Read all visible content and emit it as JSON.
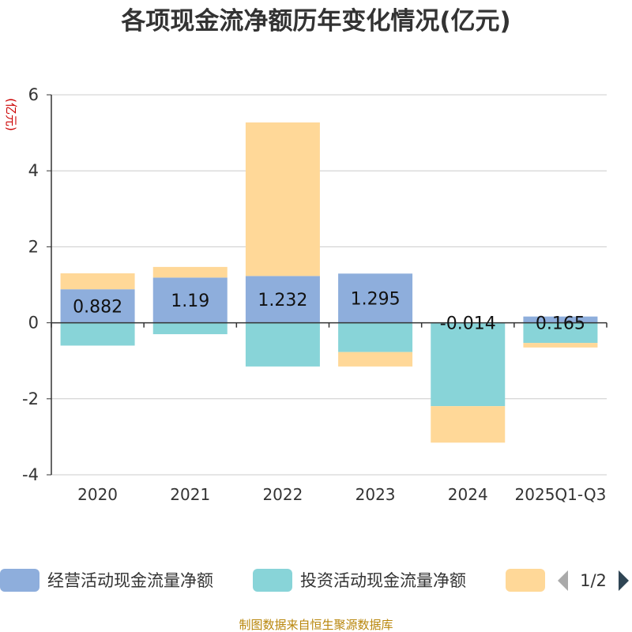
{
  "chart_data": {
    "type": "bar",
    "stacked": true,
    "title": "各项现金流净额历年变化情况(亿元)",
    "ylabel": "(亿元)",
    "ylim": [
      -4,
      6
    ],
    "yticks": [
      6,
      4,
      2,
      0,
      -2,
      -4
    ],
    "categories": [
      "2020",
      "2021",
      "2022",
      "2023",
      "2024",
      "2025Q1-Q3"
    ],
    "series": [
      {
        "name": "经营活动现金流量净额",
        "color": "#8eaedc",
        "values": [
          0.882,
          1.19,
          1.232,
          1.295,
          -0.014,
          0.165
        ],
        "labels": [
          "0.882",
          "1.19",
          "1.232",
          "1.295",
          "-0.014",
          "0.165"
        ]
      },
      {
        "name": "投资活动现金流量净额",
        "color": "#88d4d8",
        "values": [
          -0.6,
          -0.3,
          -1.15,
          -0.77,
          -2.18,
          -0.53
        ]
      },
      {
        "name": "",
        "color": "#ffd898",
        "values": [
          0.42,
          0.28,
          4.04,
          -0.38,
          -0.96,
          -0.12
        ]
      }
    ],
    "grid": true,
    "legend_position": "bottom"
  },
  "legend": {
    "pager": "1/2"
  },
  "source": "制图数据来自恒生聚源数据库"
}
